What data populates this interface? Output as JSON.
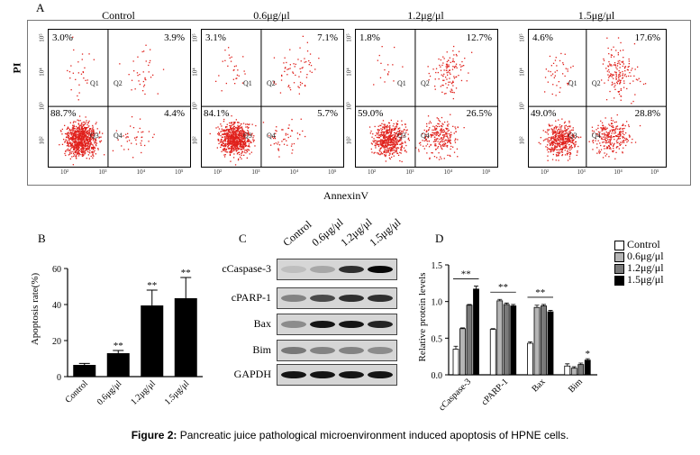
{
  "panel_a": {
    "letter": "A",
    "y_axis_label": "PI",
    "x_axis_label": "AnnexinV",
    "conditions": [
      {
        "title": "Control",
        "q1": "3.0%",
        "q2": "3.9%",
        "q3": "88.7%",
        "q4": "4.4%"
      },
      {
        "title": "0.6μg/μl",
        "q1": "3.1%",
        "q2": "7.1%",
        "q3": "84.1%",
        "q4": "5.7%"
      },
      {
        "title": "1.2μg/μl",
        "q1": "1.8%",
        "q2": "12.7%",
        "q3": "59.0%",
        "q4": "26.5%"
      },
      {
        "title": "1.5μg/μl",
        "q1": "4.6%",
        "q2": "17.6%",
        "q3": "49.0%",
        "q4": "28.8%"
      }
    ],
    "quadrant_labels": [
      "Q1",
      "Q2",
      "Q3",
      "Q4"
    ],
    "y_ticks": [
      "10⁵",
      "10⁴",
      "10³",
      "10²"
    ],
    "x_ticks": [
      "10²",
      "10³",
      "10⁴",
      "10⁵"
    ],
    "dot_color": "#e0201b"
  },
  "panel_b": {
    "letter": "B",
    "chart_data": {
      "type": "bar",
      "ylabel": "Apoptosis rate(%)",
      "categories": [
        "Control",
        "0.6μg/μl",
        "1.2μg/μl",
        "1.5μg/μl"
      ],
      "values": [
        6.5,
        13,
        39.5,
        43.5
      ],
      "errors": [
        0.8,
        1.5,
        8.5,
        11.5
      ],
      "annotations": [
        "",
        "**",
        "**",
        "**"
      ],
      "ylim": [
        0,
        60
      ],
      "yticks": [
        "0",
        "20",
        "40",
        "60"
      ]
    }
  },
  "panel_c": {
    "letter": "C",
    "columns": [
      "Control",
      "0.6μg/μl",
      "1.2μg/μl",
      "1.5μg/μl"
    ],
    "rows": [
      {
        "label": "cCaspase-3",
        "intensity": [
          0.15,
          0.3,
          0.85,
          1.0
        ]
      },
      {
        "label": "cPARP-1",
        "intensity": [
          0.5,
          0.75,
          0.85,
          0.85
        ]
      },
      {
        "label": "Bax",
        "intensity": [
          0.45,
          0.95,
          0.95,
          0.9
        ]
      },
      {
        "label": "Bim",
        "intensity": [
          0.55,
          0.5,
          0.5,
          0.45
        ]
      },
      {
        "label": "GAPDH",
        "intensity": [
          0.95,
          0.95,
          0.95,
          0.95
        ]
      }
    ]
  },
  "panel_d": {
    "letter": "D",
    "chart_data": {
      "type": "bar",
      "ylabel": "Relative protein levels",
      "categories": [
        "cCaspase-3",
        "cPARP-1",
        "Bax",
        "Bim"
      ],
      "series": [
        {
          "name": "Control",
          "values": [
            0.35,
            0.62,
            0.43,
            0.12
          ],
          "errors": [
            0.04,
            0.01,
            0.02,
            0.03
          ]
        },
        {
          "name": "0.6μg/μl",
          "values": [
            0.63,
            1.01,
            0.92,
            0.09
          ],
          "errors": [
            0.01,
            0.02,
            0.03,
            0.02
          ]
        },
        {
          "name": "1.2μg/μl",
          "values": [
            0.95,
            0.96,
            0.94,
            0.14
          ],
          "errors": [
            0.01,
            0.02,
            0.02,
            0.02
          ]
        },
        {
          "name": "1.5μg/μl",
          "values": [
            1.17,
            0.94,
            0.86,
            0.2
          ],
          "errors": [
            0.04,
            0.02,
            0.02,
            0.02
          ]
        }
      ],
      "annotations": [
        "**",
        "**",
        "**",
        "*"
      ],
      "ylim": [
        0,
        1.5
      ],
      "yticks": [
        "0.0",
        "0.5",
        "1.0",
        "1.5"
      ],
      "colors": [
        "#ffffff",
        "#b5b5b5",
        "#7a7a7a",
        "#000000"
      ]
    }
  },
  "caption": {
    "prefix": "Figure 2:",
    "text": " Pancreatic juice pathological microenvironment induced apoptosis of HPNE cells."
  }
}
